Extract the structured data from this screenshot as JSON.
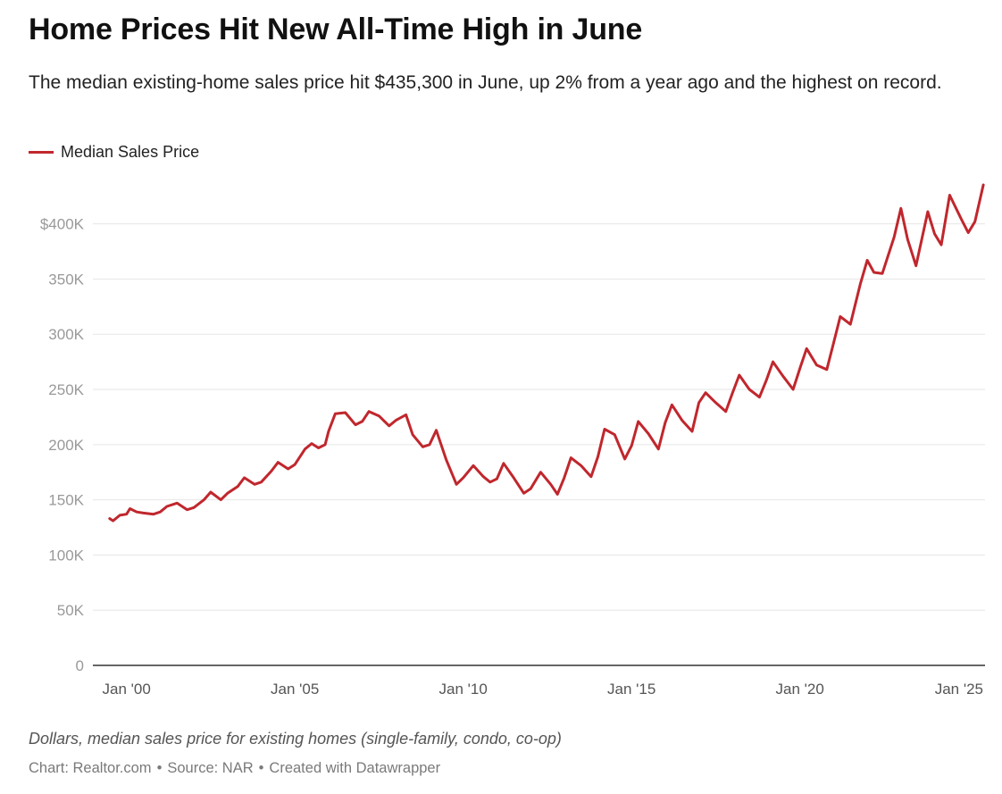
{
  "title": "Home Prices Hit New All-Time High in June",
  "subtitle": "The median existing-home sales price hit $435,300 in June, up 2% from a year ago and the highest on record.",
  "notes": "Dollars, median sales price for existing homes (single-family, condo, co-op)",
  "credits": {
    "chart": "Chart: Realtor.com",
    "source": "Source: NAR",
    "created": "Created with Datawrapper",
    "separator": "•"
  },
  "colors": {
    "line": "#c0272d",
    "grid": "#e6e6e6",
    "axis": "#333333",
    "tick_text": "#999999",
    "x_tick_text": "#555555"
  },
  "chart_data": {
    "type": "line",
    "legend_position": "top-left",
    "grid": true,
    "ylim": [
      0,
      435300
    ],
    "yticks": [
      0,
      50000,
      100000,
      150000,
      200000,
      250000,
      300000,
      350000,
      400000
    ],
    "ytick_labels": [
      "0",
      "50K",
      "100K",
      "150K",
      "200K",
      "250K",
      "300K",
      "350K",
      "$400K"
    ],
    "xlim": [
      1999.0,
      2025.5
    ],
    "xticks": [
      2000,
      2005,
      2010,
      2015,
      2020,
      2025
    ],
    "xtick_labels": [
      "Jan '00",
      "Jan '05",
      "Jan '10",
      "Jan '15",
      "Jan '20",
      "Jan '25"
    ],
    "series": [
      {
        "name": "Median Sales Price",
        "x": [
          1999.5,
          1999.6,
          1999.8,
          2000.0,
          2000.1,
          2000.3,
          2000.5,
          2000.8,
          2001.0,
          2001.2,
          2001.5,
          2001.8,
          2002.0,
          2002.3,
          2002.5,
          2002.8,
          2003.0,
          2003.3,
          2003.5,
          2003.8,
          2004.0,
          2004.3,
          2004.5,
          2004.8,
          2005.0,
          2005.3,
          2005.5,
          2005.7,
          2005.9,
          2006.0,
          2006.2,
          2006.5,
          2006.8,
          2007.0,
          2007.2,
          2007.5,
          2007.8,
          2008.0,
          2008.3,
          2008.5,
          2008.8,
          2009.0,
          2009.2,
          2009.5,
          2009.8,
          2010.0,
          2010.3,
          2010.6,
          2010.8,
          2011.0,
          2011.2,
          2011.5,
          2011.8,
          2012.0,
          2012.3,
          2012.6,
          2012.8,
          2013.0,
          2013.2,
          2013.5,
          2013.8,
          2014.0,
          2014.2,
          2014.5,
          2014.8,
          2015.0,
          2015.2,
          2015.5,
          2015.8,
          2016.0,
          2016.2,
          2016.5,
          2016.8,
          2017.0,
          2017.2,
          2017.5,
          2017.8,
          2018.0,
          2018.2,
          2018.5,
          2018.8,
          2019.0,
          2019.2,
          2019.5,
          2019.8,
          2020.0,
          2020.2,
          2020.5,
          2020.8,
          2021.0,
          2021.2,
          2021.5,
          2021.8,
          2022.0,
          2022.2,
          2022.45,
          2022.8,
          2023.0,
          2023.2,
          2023.45,
          2023.8,
          2024.0,
          2024.2,
          2024.45,
          2024.8,
          2025.0,
          2025.2,
          2025.45
        ],
        "values": [
          133000,
          131000,
          136000,
          137000,
          142000,
          139000,
          138000,
          137000,
          139000,
          144000,
          147000,
          141000,
          143000,
          150000,
          157000,
          150000,
          156000,
          162000,
          170000,
          164000,
          166000,
          176000,
          184000,
          178000,
          182000,
          196000,
          201000,
          197000,
          200000,
          212000,
          228000,
          229000,
          218000,
          221000,
          230000,
          226000,
          217000,
          222000,
          227000,
          209000,
          198000,
          200000,
          213000,
          186000,
          164000,
          170000,
          181000,
          171000,
          166000,
          169000,
          183000,
          170000,
          156000,
          160000,
          175000,
          164000,
          155000,
          170000,
          188000,
          181000,
          171000,
          189000,
          214000,
          209000,
          187000,
          199000,
          221000,
          210000,
          196000,
          220000,
          236000,
          222000,
          212000,
          238000,
          247000,
          238000,
          230000,
          247000,
          263000,
          250000,
          243000,
          258000,
          275000,
          262000,
          250000,
          269000,
          287000,
          272000,
          268000,
          292000,
          316000,
          309000,
          346000,
          367000,
          356000,
          355000,
          388000,
          414000,
          386000,
          362000,
          411000,
          391000,
          381000,
          426000,
          404000,
          392000,
          402000,
          435300
        ]
      }
    ]
  }
}
